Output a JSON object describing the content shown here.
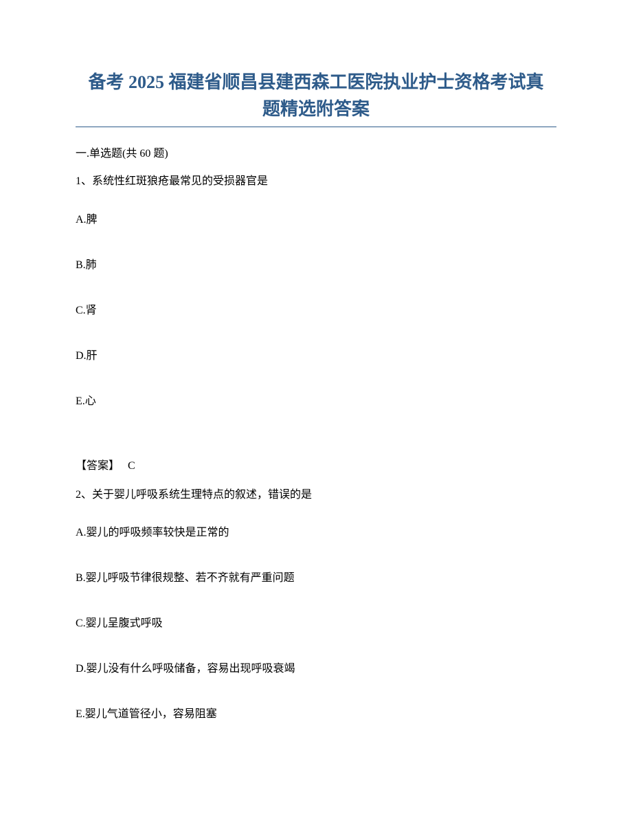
{
  "colors": {
    "title_color": "#2e5b8a",
    "text_color": "#000000",
    "rule_color": "#2e5b8a",
    "background": "#ffffff"
  },
  "typography": {
    "title_fontsize": 26,
    "body_fontsize": 16,
    "title_font": "SimSun",
    "body_font": "SimSun",
    "latin_font": "Times New Roman"
  },
  "title_line1": "备考 2025 福建省顺昌县建西森工医院执业护士资格考试真",
  "title_line2": "题精选附答案",
  "section_header_prefix": "一.单选题(共 ",
  "section_header_count": "60",
  "section_header_suffix": " 题)",
  "q1": {
    "number": "1、",
    "text": "系统性红斑狼疮最常见的受损器官是",
    "options": {
      "A": "A.脾",
      "B": "B.肺",
      "C": "C.肾",
      "D": "D.肝",
      "E": "E.心"
    },
    "answer_label": "【答案】",
    "answer_value": "C"
  },
  "q2": {
    "number": "2、",
    "text": "关于婴儿呼吸系统生理特点的叙述，错误的是",
    "options": {
      "A": "A.婴儿的呼吸频率较快是正常的",
      "B": "B.婴儿呼吸节律很规整、若不齐就有严重问题",
      "C": "C.婴儿呈腹式呼吸",
      "D": "D.婴儿没有什么呼吸储备，容易出现呼吸衰竭",
      "E": "E.婴儿气道管径小，容易阻塞"
    }
  }
}
